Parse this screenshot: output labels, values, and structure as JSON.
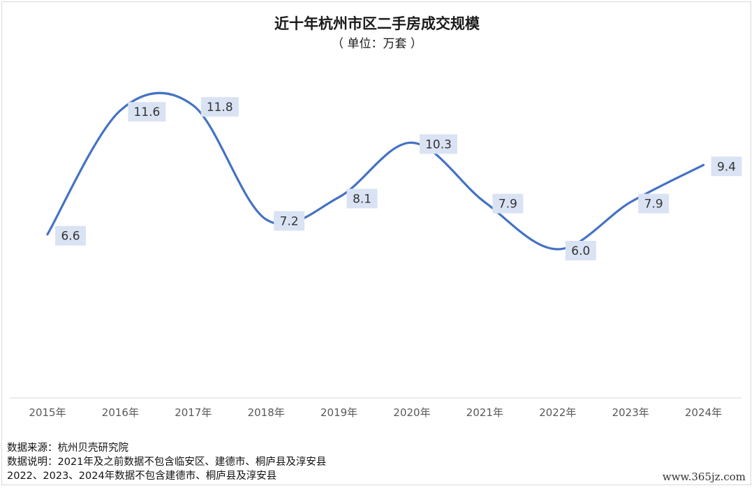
{
  "chart_data": {
    "type": "line",
    "title": "近十年杭州市区二手房成交规模",
    "subtitle": "（ 单位：万套 ）",
    "categories": [
      "2015年",
      "2016年",
      "2017年",
      "2018年",
      "2019年",
      "2020年",
      "2021年",
      "2022年",
      "2023年",
      "2024年"
    ],
    "series": [
      {
        "values": [
          6.6,
          11.6,
          11.8,
          7.2,
          8.1,
          10.3,
          7.9,
          6.0,
          7.9,
          9.4
        ],
        "labels": [
          "6.6",
          "11.6",
          "11.8",
          "7.2",
          "8.1",
          "10.3",
          "7.9",
          "6.0",
          "7.9",
          "9.4"
        ],
        "color": "#4472c4",
        "smooth": true
      }
    ],
    "ylim": [
      0,
      14
    ],
    "grid": false,
    "legend": "none",
    "label_background": "#dae3f3"
  },
  "notes": {
    "source": "数据来源：杭州贝壳研究院",
    "explanation": "数据说明：2021年及之前数据不包含临安区、建德市、桐庐县及淳安县",
    "explanation2": "2022、2023、2024年数据不包含建德市、桐庐县及淳安县"
  },
  "watermark": "www.365jz.com"
}
